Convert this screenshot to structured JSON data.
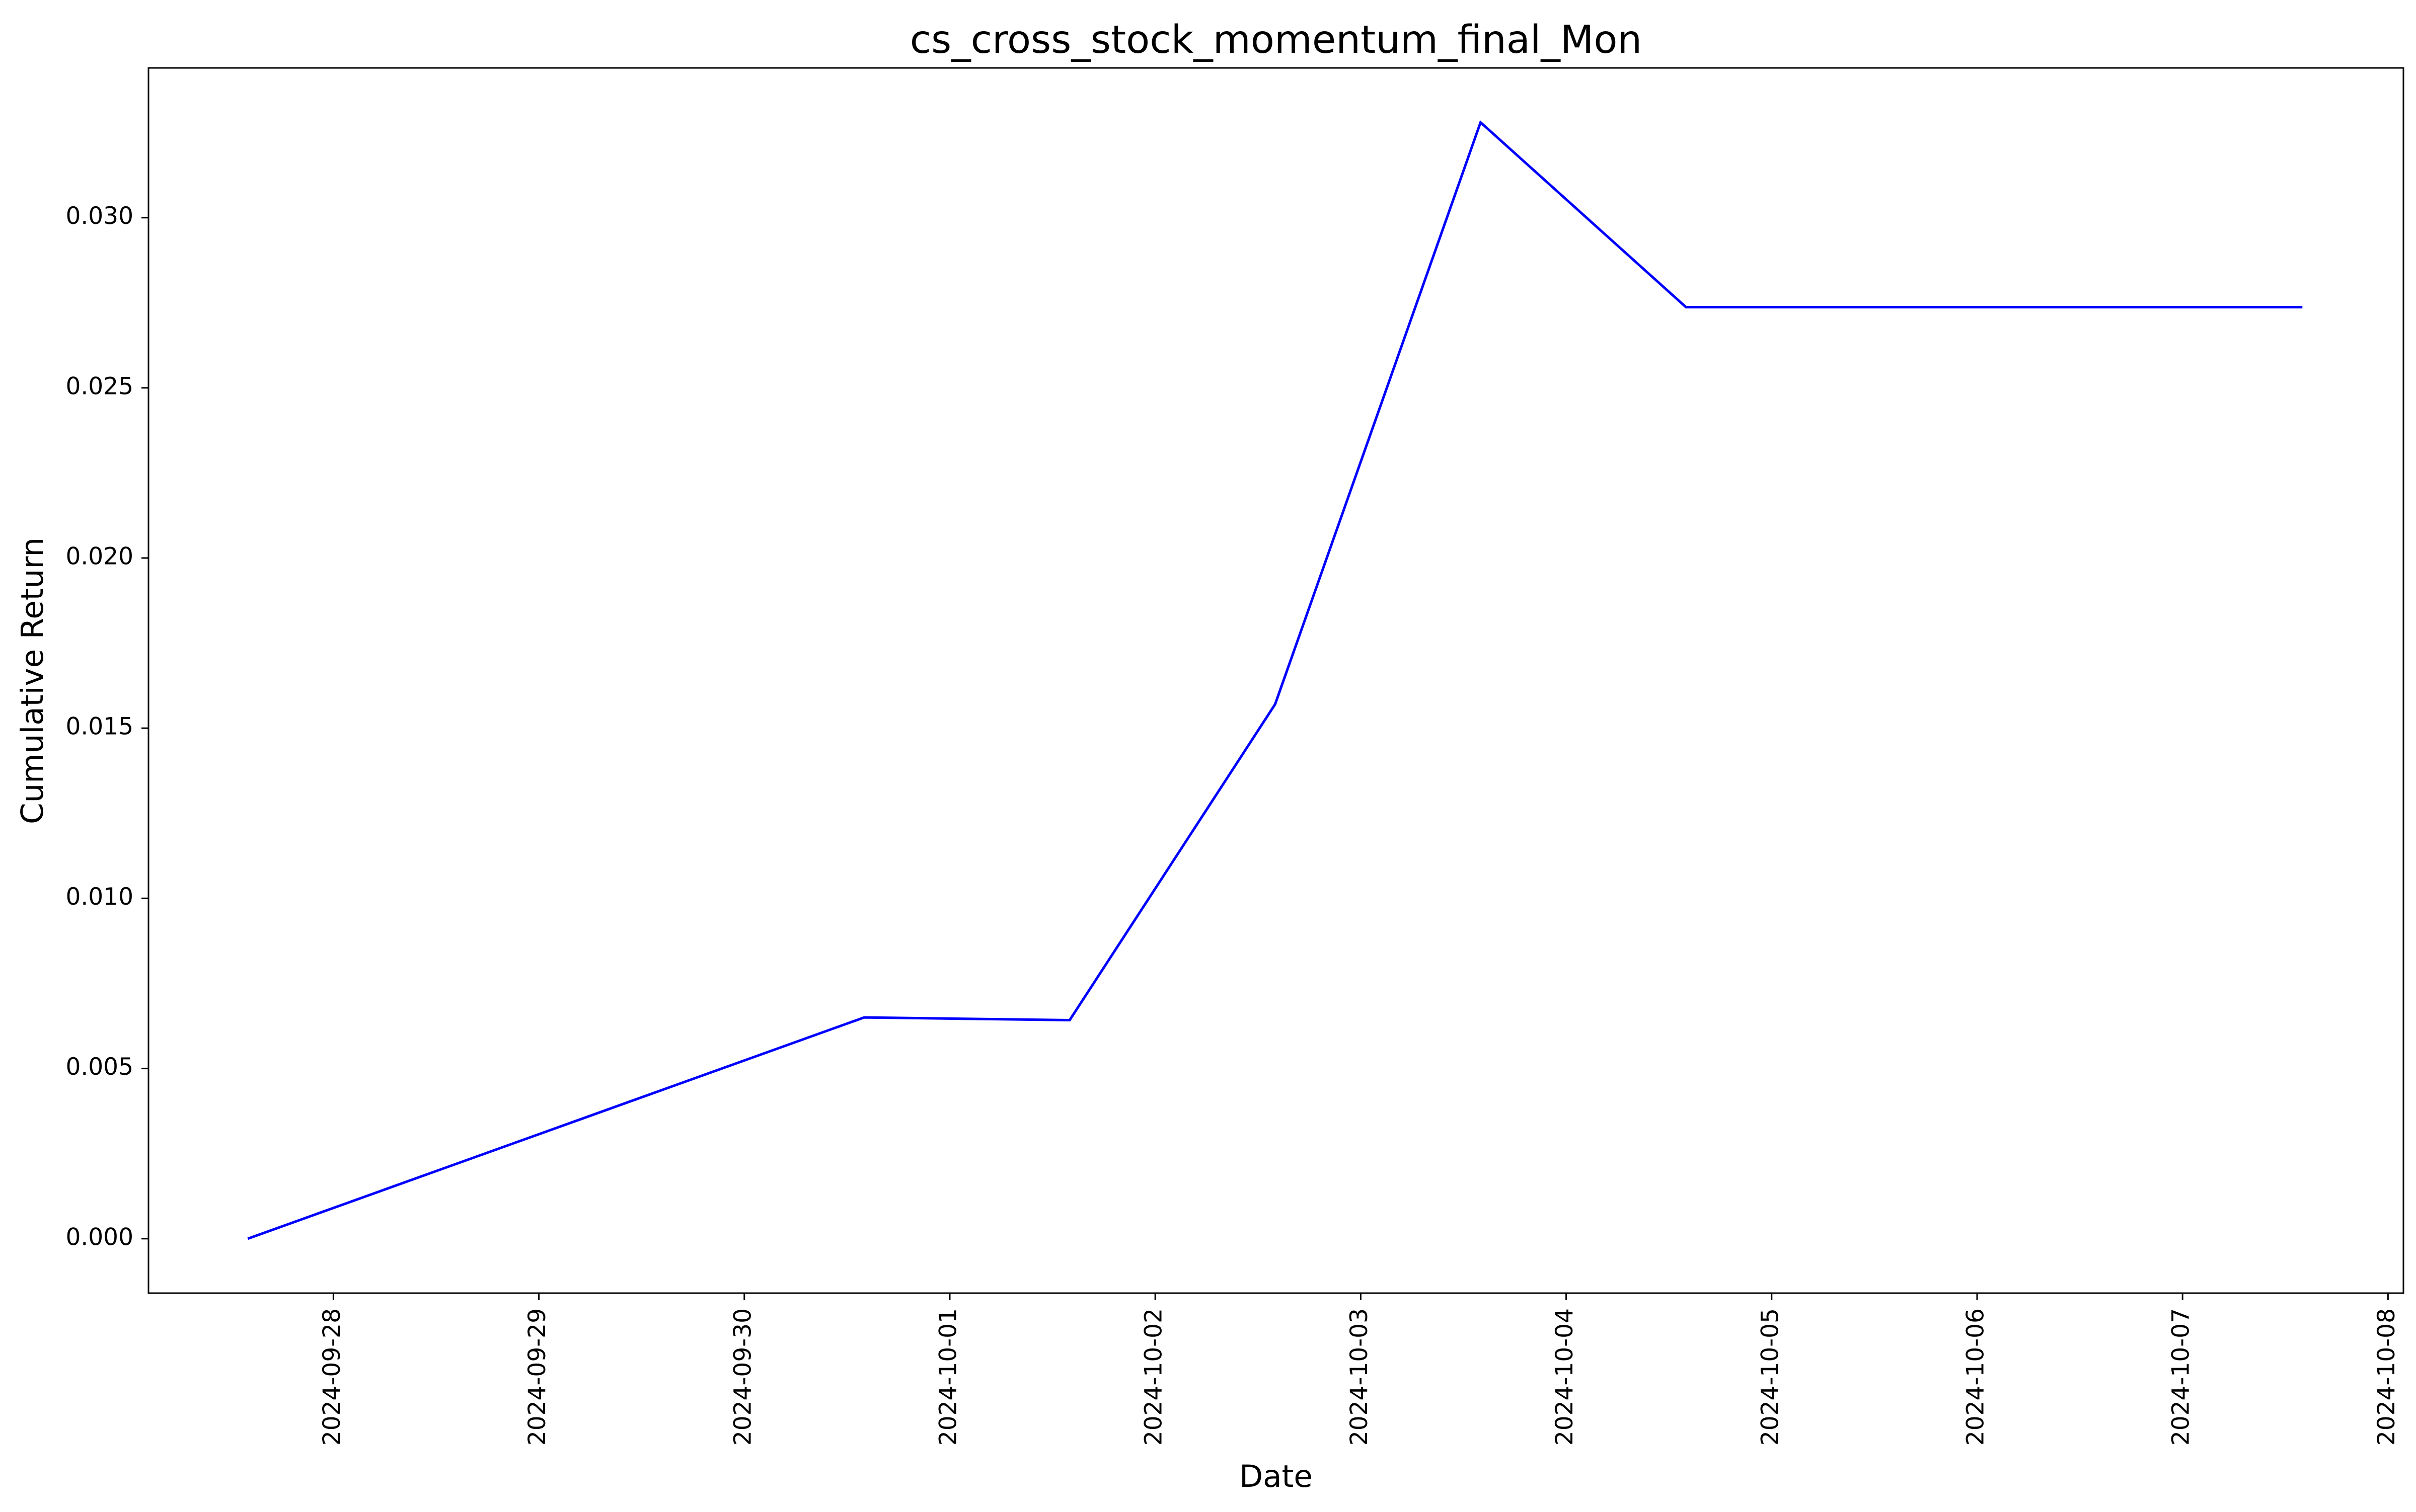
{
  "chart_data": {
    "type": "line",
    "title": "cs_cross_stock_momentum_final_Mon",
    "xlabel": "Date",
    "ylabel": "Cumulative Return",
    "x_ticks": [
      "2024-09-28",
      "2024-09-29",
      "2024-09-30",
      "2024-10-01",
      "2024-10-02",
      "2024-10-03",
      "2024-10-04",
      "2024-10-05",
      "2024-10-06",
      "2024-10-07",
      "2024-10-08"
    ],
    "y_ticks": [
      "0.000",
      "0.005",
      "0.010",
      "0.015",
      "0.020",
      "0.025",
      "0.030"
    ],
    "xlim": [
      "2024-09-27T02:24",
      "2024-10-08T01:48"
    ],
    "ylim": [
      -0.0016,
      0.0344
    ],
    "grid": false,
    "series": [
      {
        "color": "#0000ff",
        "points": [
          {
            "x": "2024-09-27T14:00",
            "y": 0.0
          },
          {
            "x": "2024-09-30T14:00",
            "y": 0.0065
          },
          {
            "x": "2024-10-01T14:00",
            "y": 0.00642
          },
          {
            "x": "2024-10-02T14:00",
            "y": 0.0157
          },
          {
            "x": "2024-10-03T14:00",
            "y": 0.0328
          },
          {
            "x": "2024-10-04T14:00",
            "y": 0.02737
          },
          {
            "x": "2024-10-07T14:00",
            "y": 0.02737
          }
        ]
      }
    ]
  }
}
